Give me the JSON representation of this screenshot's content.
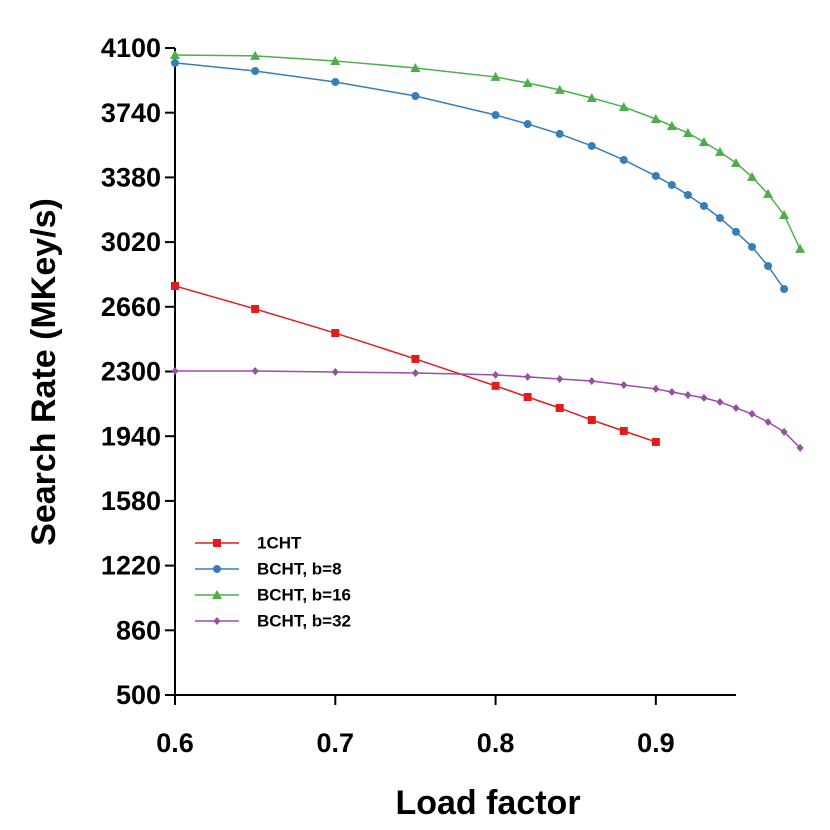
{
  "chart_data": {
    "type": "line",
    "x_label": "Load factor",
    "y_label": "Search Rate (MKey/s)",
    "xlim": [
      0.6,
      0.95
    ],
    "xticks": [
      0.6,
      0.7,
      0.8,
      0.9
    ],
    "ylim": [
      500,
      4100
    ],
    "yticks": [
      500,
      860,
      1220,
      1580,
      1940,
      2300,
      2660,
      3020,
      3380,
      3740,
      4100
    ],
    "legend": "bottom-left",
    "series": [
      {
        "name": "1CHT",
        "color": "#e41a1c",
        "marker": "square",
        "x": [
          0.6,
          0.65,
          0.7,
          0.75,
          0.8,
          0.82,
          0.84,
          0.86,
          0.88,
          0.9
        ],
        "values": [
          2776,
          2648,
          2514,
          2370,
          2220,
          2158,
          2097,
          2030,
          1969,
          1908
        ]
      },
      {
        "name": "BCHT, b=8",
        "color": "#377eb8",
        "marker": "circle",
        "x": [
          0.6,
          0.65,
          0.7,
          0.75,
          0.8,
          0.82,
          0.84,
          0.86,
          0.88,
          0.9,
          0.91,
          0.92,
          0.93,
          0.94,
          0.95,
          0.96,
          0.97,
          0.98
        ],
        "values": [
          4017,
          3972,
          3911,
          3833,
          3727,
          3677,
          3622,
          3555,
          3477,
          3388,
          3338,
          3282,
          3221,
          3154,
          3077,
          2993,
          2887,
          2759
        ]
      },
      {
        "name": "BCHT, b=16",
        "color": "#4daf4a",
        "marker": "triangle",
        "x": [
          0.6,
          0.65,
          0.7,
          0.75,
          0.8,
          0.82,
          0.84,
          0.86,
          0.88,
          0.9,
          0.91,
          0.92,
          0.93,
          0.94,
          0.95,
          0.96,
          0.97,
          0.98,
          0.99
        ],
        "values": [
          4061,
          4056,
          4028,
          3989,
          3939,
          3905,
          3867,
          3822,
          3772,
          3705,
          3666,
          3627,
          3577,
          3522,
          3460,
          3383,
          3288,
          3171,
          2982
        ]
      },
      {
        "name": "BCHT, b=32",
        "color": "#984ea3",
        "marker": "diamond",
        "x": [
          0.6,
          0.65,
          0.7,
          0.75,
          0.8,
          0.82,
          0.84,
          0.86,
          0.88,
          0.9,
          0.91,
          0.92,
          0.93,
          0.94,
          0.95,
          0.96,
          0.97,
          0.98,
          0.99
        ],
        "values": [
          2303,
          2303,
          2297,
          2292,
          2281,
          2270,
          2258,
          2247,
          2225,
          2203,
          2186,
          2169,
          2153,
          2130,
          2097,
          2064,
          2019,
          1964,
          1875
        ]
      }
    ]
  }
}
